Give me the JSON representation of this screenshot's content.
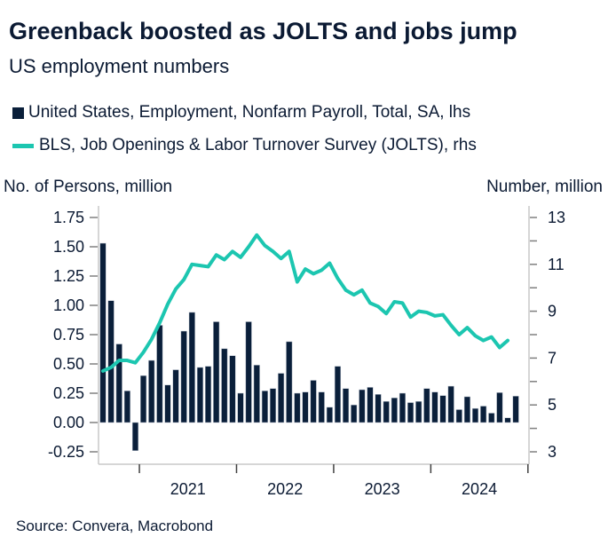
{
  "chart_data": {
    "type": "bar+line",
    "title": "Greenback boosted as JOLTS and jobs jump",
    "subtitle": "US employment numbers",
    "source": "Source: Convera, Macrobond",
    "ylabel_left": "No. of Persons, million",
    "ylabel_right": "Number, million",
    "ylim_left": [
      -0.25,
      1.75
    ],
    "ylim_right": [
      3,
      13
    ],
    "yticks_left": [
      "1.75",
      "1.50",
      "1.25",
      "1.00",
      "0.75",
      "0.50",
      "0.25",
      "0.00",
      "-0.25"
    ],
    "yticks_right": [
      "13",
      "11",
      "9",
      "7",
      "5",
      "3"
    ],
    "xticks": [
      "2021",
      "2022",
      "2023",
      "2024"
    ],
    "x_start": "2020-08",
    "x_end": "2024-11",
    "frequency": "monthly",
    "legend_placement": "top-left",
    "series": [
      {
        "name": "United States, Employment, Nonfarm Payroll, Total, SA, lhs",
        "type": "bar",
        "axis": "left",
        "color": "#0a1f3a",
        "values": [
          1.53,
          1.04,
          0.67,
          0.27,
          -0.24,
          0.4,
          0.53,
          0.83,
          0.32,
          0.45,
          0.78,
          0.94,
          0.47,
          0.48,
          0.86,
          0.63,
          0.57,
          0.25,
          0.86,
          0.49,
          0.27,
          0.29,
          0.42,
          0.69,
          0.25,
          0.26,
          0.36,
          0.26,
          0.13,
          0.48,
          0.29,
          0.15,
          0.28,
          0.3,
          0.24,
          0.18,
          0.21,
          0.25,
          0.17,
          0.18,
          0.29,
          0.26,
          0.23,
          0.31,
          0.11,
          0.22,
          0.12,
          0.14,
          0.08,
          0.255,
          0.04,
          0.225
        ]
      },
      {
        "name": "BLS, Job Openings & Labor Turnover Survey (JOLTS), rhs",
        "type": "line",
        "axis": "right",
        "color": "#1cc6b0",
        "values": [
          6.45,
          6.6,
          6.9,
          6.9,
          6.8,
          7.25,
          7.8,
          8.5,
          9.3,
          9.95,
          10.35,
          11.0,
          10.95,
          10.9,
          11.4,
          11.2,
          11.55,
          11.3,
          11.75,
          12.25,
          11.8,
          11.55,
          11.25,
          11.55,
          10.25,
          10.8,
          10.6,
          10.75,
          11.05,
          10.4,
          9.9,
          9.7,
          9.9,
          9.35,
          9.2,
          8.9,
          9.4,
          9.35,
          8.75,
          9.0,
          8.95,
          8.8,
          8.85,
          8.4,
          8.0,
          8.3,
          7.95,
          7.75,
          7.9,
          7.45,
          7.75,
          null
        ]
      }
    ]
  }
}
